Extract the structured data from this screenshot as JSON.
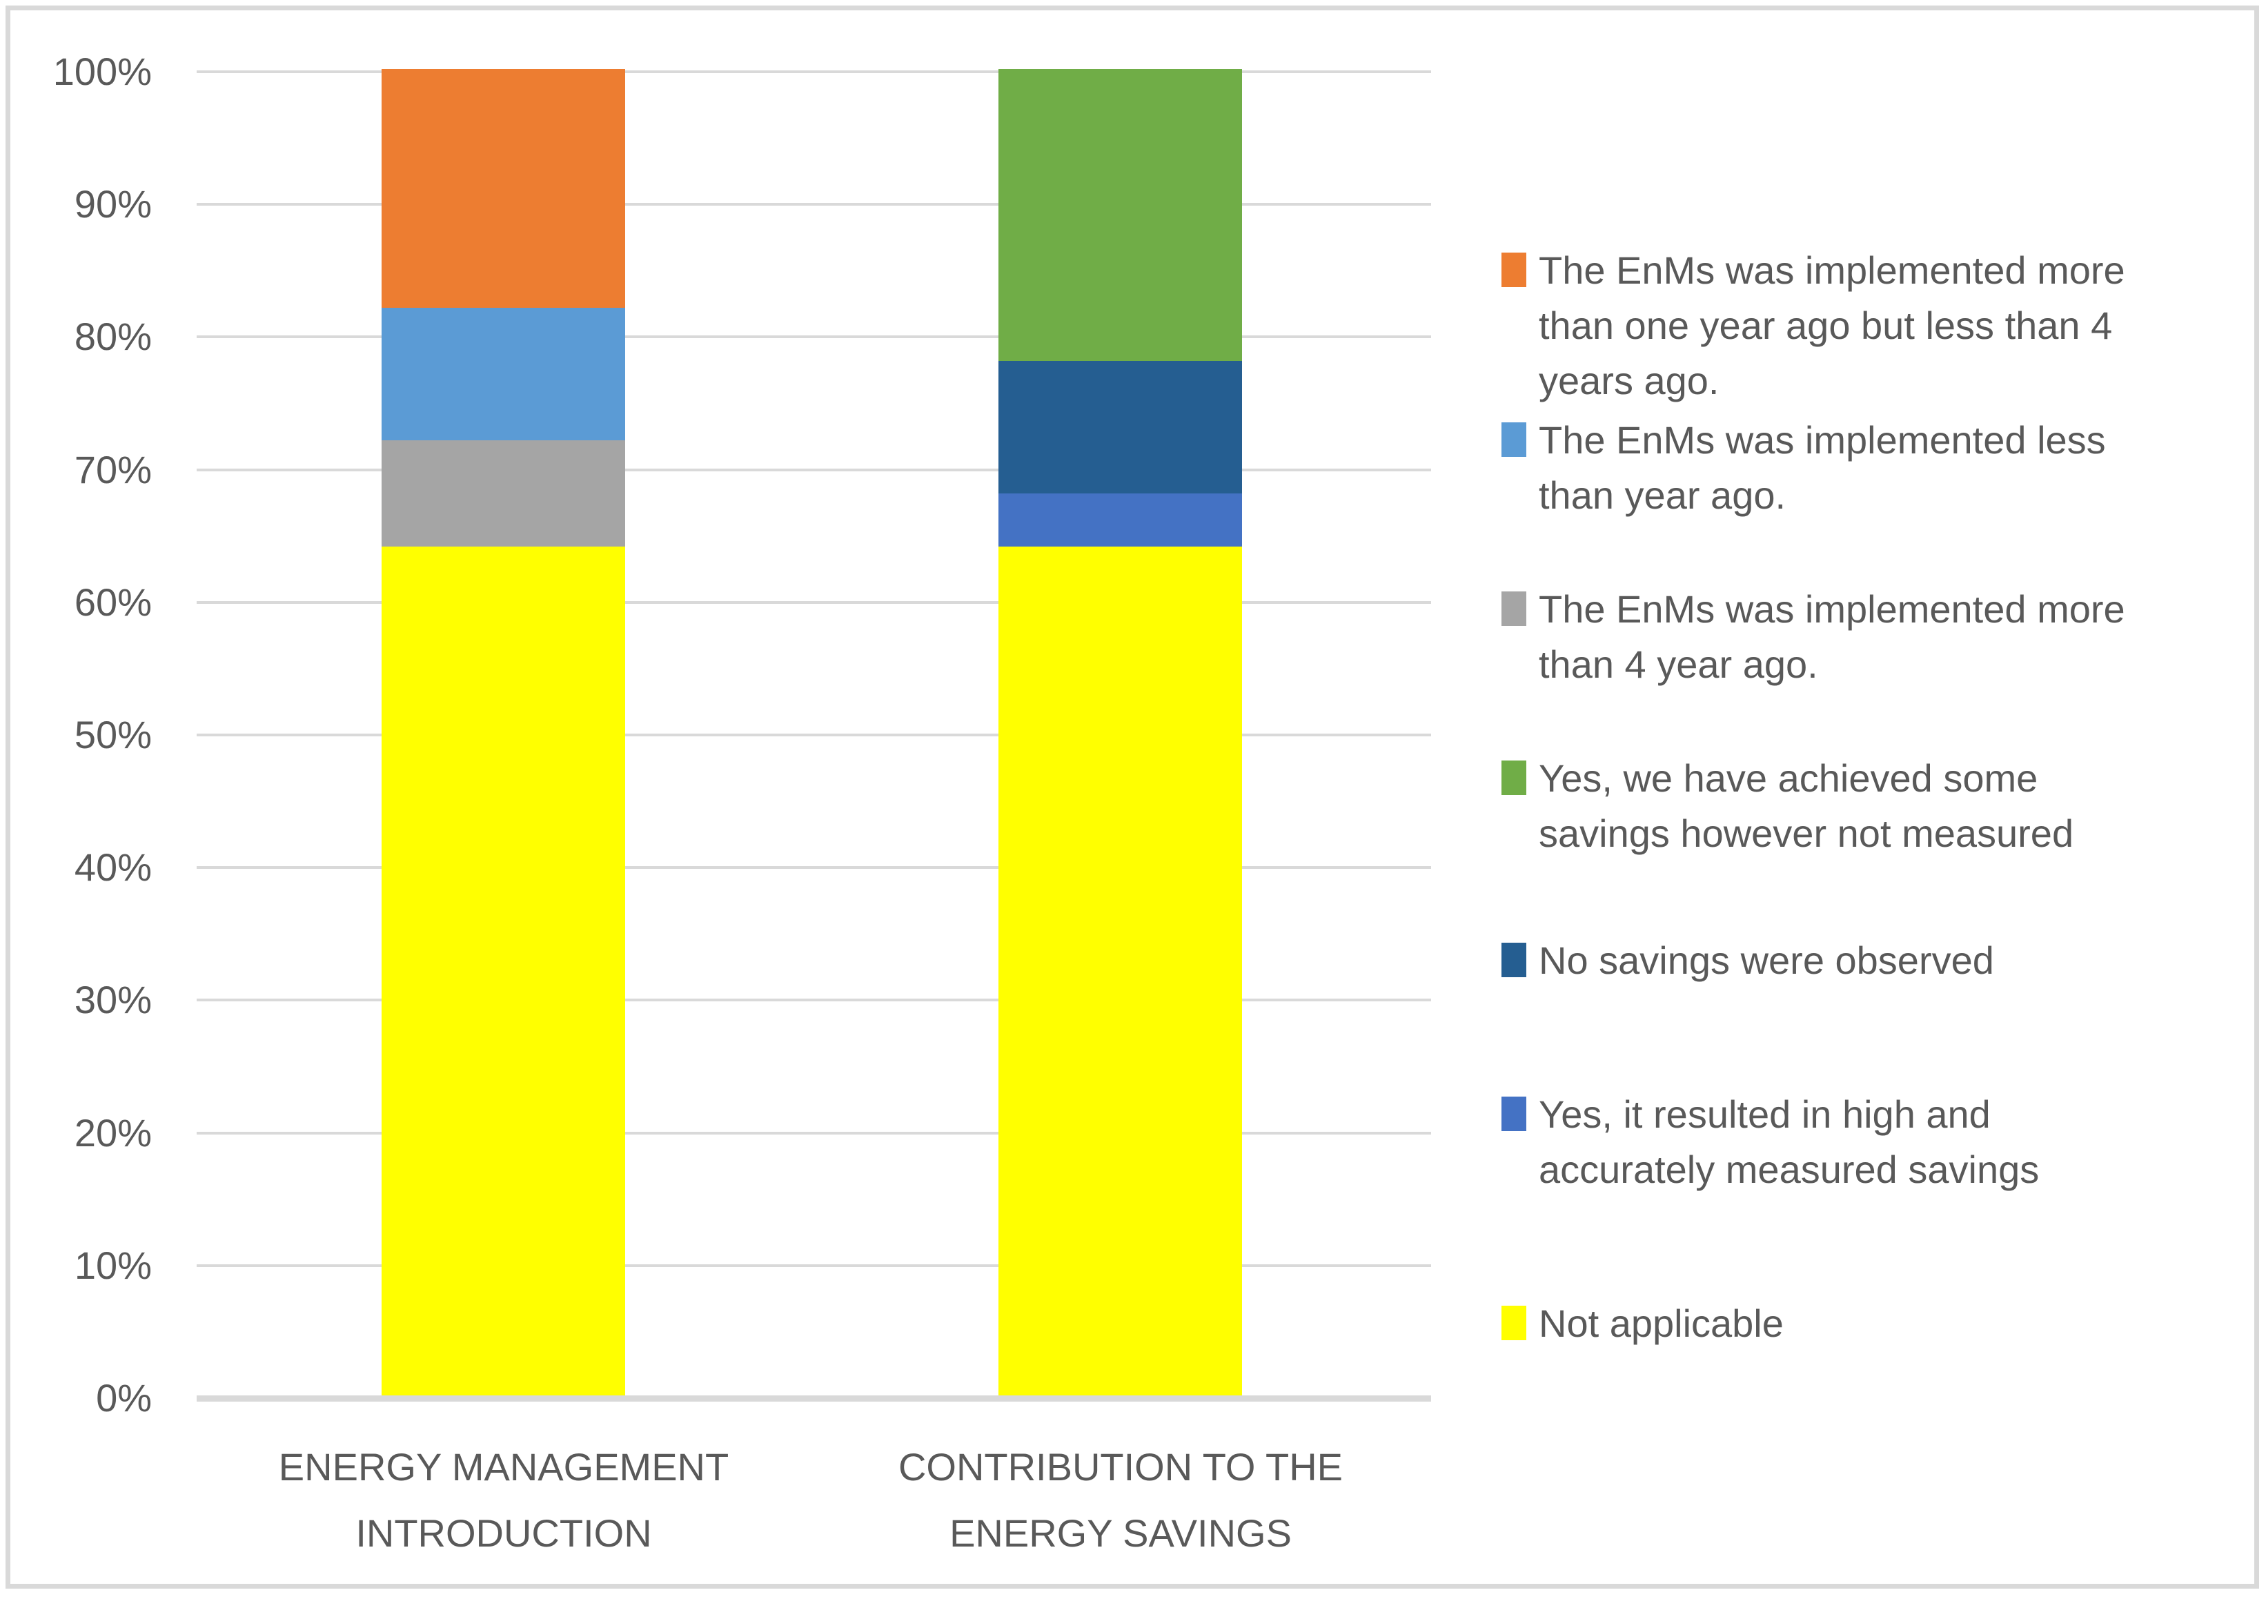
{
  "figure": {
    "background": "#FFFFFF",
    "frame_border_color": "#D9D9D9",
    "gridline_color": "#D9D9D9",
    "text_color": "#595959"
  },
  "chart_data": {
    "type": "bar",
    "subtype": "stacked-100",
    "orientation": "vertical",
    "title": "",
    "xlabel": "",
    "ylabel": "",
    "ylim": [
      0,
      100
    ],
    "grid": true,
    "legend_position": "right",
    "yticks": [
      "0%",
      "10%",
      "20%",
      "30%",
      "40%",
      "50%",
      "60%",
      "70%",
      "80%",
      "90%",
      "100%"
    ],
    "categories": [
      "ENERGY MANAGEMENT INTRODUCTION",
      "CONTRIBUTION TO THE ENERGY SAVINGS"
    ],
    "category_lines": [
      [
        "ENERGY MANAGEMENT",
        "INTRODUCTION"
      ],
      [
        "CONTRIBUTION TO THE",
        "ENERGY SAVINGS"
      ]
    ],
    "series": [
      {
        "name": "The EnMs was implemented more than one year ago but less than 4 years ago.",
        "color": "#ED7D31",
        "values": [
          18,
          0
        ]
      },
      {
        "name": "The EnMs was implemented less than year ago.",
        "color": "#5B9BD5",
        "values": [
          10,
          0
        ]
      },
      {
        "name": "The EnMs was implemented more than 4 year ago.",
        "color": "#A5A5A5",
        "values": [
          8,
          0
        ]
      },
      {
        "name": "Yes, we have achieved some savings however not measured",
        "color": "#70AD47",
        "values": [
          0,
          22
        ]
      },
      {
        "name": "No savings were observed",
        "color": "#255E91",
        "values": [
          0,
          10
        ]
      },
      {
        "name": "Yes, it resulted in high and accurately measured savings",
        "color": "#4472C4",
        "values": [
          0,
          4
        ]
      },
      {
        "name": "Not applicable",
        "color": "#FFFF00",
        "values": [
          64,
          64
        ]
      }
    ],
    "stacks": [
      {
        "category": "ENERGY MANAGEMENT INTRODUCTION",
        "segments_bottom_to_top": [
          {
            "series": "Not applicable",
            "color": "#FFFF00",
            "value": 64
          },
          {
            "series": "The EnMs was implemented more than 4 year ago.",
            "color": "#A5A5A5",
            "value": 8
          },
          {
            "series": "The EnMs was implemented less than year ago.",
            "color": "#5B9BD5",
            "value": 10
          },
          {
            "series": "The EnMs was implemented more than one year ago but less than 4 years ago.",
            "color": "#ED7D31",
            "value": 18
          }
        ]
      },
      {
        "category": "CONTRIBUTION TO THE ENERGY SAVINGS",
        "segments_bottom_to_top": [
          {
            "series": "Not applicable",
            "color": "#FFFF00",
            "value": 64
          },
          {
            "series": "Yes, it resulted in high and accurately measured savings",
            "color": "#4472C4",
            "value": 4
          },
          {
            "series": "No savings were observed",
            "color": "#255E91",
            "value": 10
          },
          {
            "series": "Yes, we have achieved some savings however not measured",
            "color": "#70AD47",
            "value": 22
          }
        ]
      }
    ],
    "legend": [
      {
        "series": "The EnMs was implemented more than one year ago but less than 4 years ago.",
        "color": "#ED7D31",
        "lines": [
          "The EnMs was implemented more",
          "than one year ago but less than 4",
          "years ago."
        ]
      },
      {
        "series": "The EnMs was implemented less than year ago.",
        "color": "#5B9BD5",
        "lines": [
          "The EnMs was implemented less",
          "than year ago."
        ]
      },
      {
        "series": "The EnMs was implemented more than 4 year ago.",
        "color": "#A5A5A5",
        "lines": [
          "The EnMs was implemented more",
          "than 4 year ago."
        ]
      },
      {
        "series": "Yes, we have achieved some savings however not measured",
        "color": "#70AD47",
        "lines": [
          "Yes, we have achieved some",
          "savings however not measured"
        ]
      },
      {
        "series": "No savings were observed",
        "color": "#255E91",
        "lines": [
          "No savings were observed"
        ]
      },
      {
        "series": "Yes, it resulted in high and accurately measured savings",
        "color": "#4472C4",
        "lines": [
          "Yes, it resulted in high and",
          "accurately measured savings"
        ]
      },
      {
        "series": "Not applicable",
        "color": "#FFFF00",
        "lines": [
          "Not applicable"
        ]
      }
    ]
  }
}
